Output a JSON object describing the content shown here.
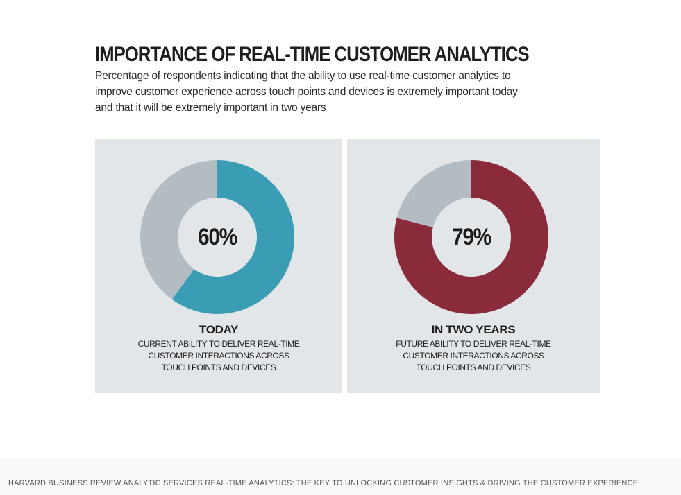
{
  "caption": "HARVARD BUSINESS REVIEW ANALYTIC SERVICES REAL-TIME ANALYTICS: THE KEY TO UNLOCKING CUSTOMER INSIGHTS & DRIVING THE CUSTOMER EXPERIENCE",
  "colors": {
    "panel_bg": "#e3e6e9",
    "remainder": "#b4bcc3",
    "today": "#3a9db3",
    "future": "#8a2b3b"
  },
  "chart_data": {
    "type": "pie",
    "title": "IMPORTANCE OF REAL-TIME CUSTOMER ANALYTICS",
    "subtitle_lines": [
      "Percentage of respondents indicating that the ability to use real-time customer analytics to",
      "improve customer experience across touch points and devices is extremely important today",
      "and that it will be extremely important in two years"
    ],
    "charts": [
      {
        "value": 60,
        "value_label": "60%",
        "heading": "TODAY",
        "description": [
          "CURRENT ABILITY TO DELIVER REAL-TIME",
          "CUSTOMER INTERACTIONS ACROSS",
          "TOUCH POINTS AND DEVICES"
        ],
        "color": "#3a9db3"
      },
      {
        "value": 79,
        "value_label": "79%",
        "heading": "IN TWO YEARS",
        "description": [
          "FUTURE ABILITY TO DELIVER REAL-TIME",
          "CUSTOMER INTERACTIONS ACROSS",
          "TOUCH POINTS AND DEVICES"
        ],
        "color": "#8a2b3b"
      }
    ]
  }
}
